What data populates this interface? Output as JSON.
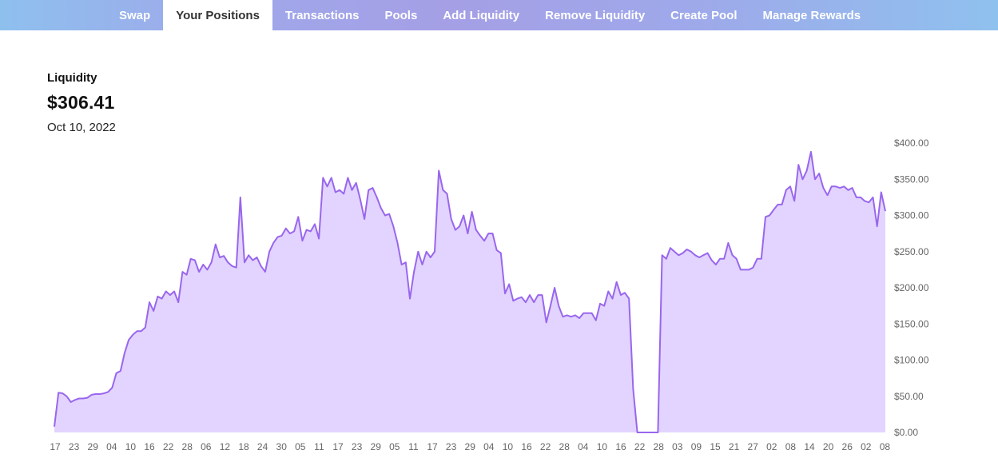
{
  "nav": {
    "tabs": [
      {
        "label": "Swap",
        "active": false
      },
      {
        "label": "Your Positions",
        "active": true
      },
      {
        "label": "Transactions",
        "active": false
      },
      {
        "label": "Pools",
        "active": false
      },
      {
        "label": "Add Liquidity",
        "active": false
      },
      {
        "label": "Remove Liquidity",
        "active": false
      },
      {
        "label": "Create Pool",
        "active": false
      },
      {
        "label": "Manage Rewards",
        "active": false
      }
    ]
  },
  "summary": {
    "label": "Liquidity",
    "value": "$306.41",
    "date": "Oct 10, 2022"
  },
  "colors": {
    "line": "#9966ee",
    "fill": "#e2d4fe",
    "nav_text": "#ffffff",
    "nav_active_text": "#333333"
  },
  "chart_data": {
    "type": "area",
    "title": "",
    "xlabel": "",
    "ylabel": "",
    "ylim": [
      0,
      400
    ],
    "y_ticks": [
      "$0.00",
      "$50.00",
      "$100.00",
      "$150.00",
      "$200.00",
      "$250.00",
      "$300.00",
      "$350.00",
      "$400.00"
    ],
    "x_ticks": [
      "17",
      "23",
      "29",
      "04",
      "10",
      "16",
      "22",
      "28",
      "06",
      "12",
      "18",
      "24",
      "30",
      "05",
      "11",
      "17",
      "23",
      "29",
      "05",
      "11",
      "17",
      "23",
      "29",
      "04",
      "10",
      "16",
      "22",
      "28",
      "04",
      "10",
      "16",
      "22",
      "28",
      "03",
      "09",
      "15",
      "21",
      "27",
      "02",
      "08",
      "14",
      "20",
      "26",
      "02",
      "08"
    ],
    "series": [
      {
        "values": [
          8,
          55,
          54,
          50,
          42,
          45,
          47,
          47,
          48,
          52,
          53,
          53,
          54,
          56,
          62,
          82,
          85,
          110,
          128,
          135,
          140,
          140,
          145,
          180,
          168,
          188,
          185,
          195,
          190,
          195,
          180,
          222,
          218,
          240,
          238,
          222,
          232,
          225,
          235,
          260,
          242,
          244,
          235,
          230,
          228,
          325,
          235,
          245,
          238,
          242,
          230,
          222,
          250,
          262,
          270,
          272,
          282,
          275,
          278,
          298,
          265,
          280,
          278,
          288,
          268,
          352,
          340,
          352,
          332,
          335,
          330,
          352,
          335,
          345,
          322,
          295,
          335,
          338,
          325,
          310,
          300,
          302,
          285,
          262,
          232,
          235,
          185,
          222,
          250,
          232,
          250,
          242,
          250,
          362,
          335,
          330,
          295,
          280,
          285,
          300,
          275,
          305,
          280,
          272,
          265,
          275,
          275,
          252,
          248,
          192,
          205,
          182,
          185,
          187,
          180,
          190,
          180,
          190,
          190,
          152,
          175,
          200,
          175,
          160,
          162,
          160,
          162,
          158,
          165,
          165,
          165,
          155,
          178,
          175,
          195,
          185,
          208,
          190,
          193,
          185,
          60,
          0,
          0,
          0,
          0,
          0,
          0,
          245,
          240,
          255,
          250,
          245,
          248,
          253,
          250,
          245,
          242,
          245,
          248,
          238,
          232,
          240,
          240,
          262,
          245,
          240,
          225,
          225,
          225,
          228,
          240,
          240,
          298,
          300,
          308,
          315,
          315,
          335,
          340,
          320,
          370,
          350,
          362,
          388,
          350,
          358,
          338,
          328,
          340,
          340,
          338,
          340,
          335,
          338,
          325,
          325,
          320,
          318,
          325,
          285,
          332,
          306
        ]
      }
    ]
  }
}
